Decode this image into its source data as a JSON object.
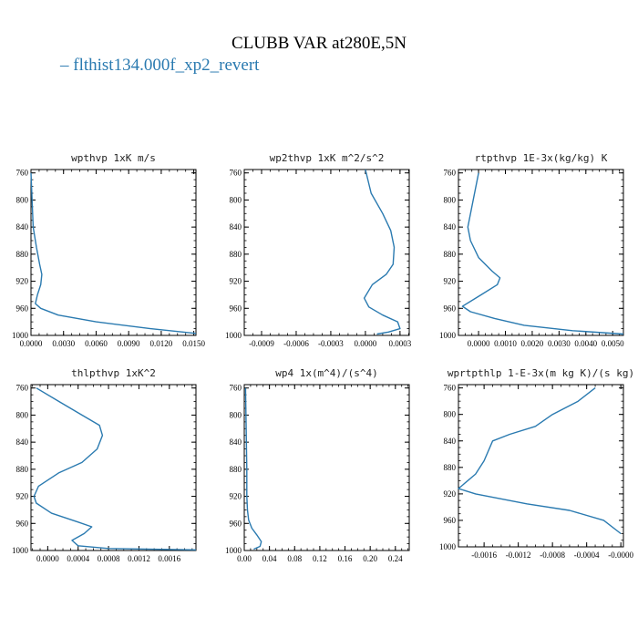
{
  "title": "CLUBB VAR at280E,5N",
  "legend": {
    "label": "flthist134.000f_xp2_revert",
    "color": "#2a7ab0"
  },
  "chart_data": [
    {
      "type": "line",
      "title": "wpthvp   1xK m/s",
      "xlim": [
        0,
        0.0152
      ],
      "ylim": [
        1000,
        755
      ],
      "xticks": [
        0,
        0.003,
        0.006,
        0.009,
        0.012,
        0.015
      ],
      "xticklabels": [
        "0.0000",
        "0.0030",
        "0.0060",
        "0.0090",
        "0.0120",
        "0.0150"
      ],
      "yticks": [
        760,
        800,
        840,
        880,
        920,
        960,
        1000
      ],
      "x": [
        0.0,
        0.0001,
        0.0002,
        0.0005,
        0.0008,
        0.001,
        0.0009,
        0.0006,
        0.0004,
        0.0009,
        0.0025,
        0.006,
        0.011,
        0.0152
      ],
      "y": [
        760,
        800,
        840,
        870,
        895,
        910,
        925,
        940,
        953,
        960,
        970,
        980,
        990,
        997
      ]
    },
    {
      "type": "line",
      "title": "wp2thvp   1xK m^2/s^2",
      "xlim": [
        -0.00105,
        0.00038
      ],
      "ylim": [
        1000,
        755
      ],
      "xticks": [
        -0.0009,
        -0.0006,
        -0.0003,
        0,
        0.0003
      ],
      "xticklabels": [
        "-0.0009",
        "-0.0006",
        "-0.0003",
        "0.0000",
        "0.0003"
      ],
      "yticks": [
        760,
        800,
        840,
        880,
        920,
        960,
        1000
      ],
      "x": [
        0.0,
        5e-05,
        0.00015,
        0.00022,
        0.00025,
        0.00024,
        0.00018,
        6e-05,
        -1e-05,
        3e-05,
        0.00015,
        0.00028,
        0.0003,
        0.0002,
        0.0001
      ],
      "y": [
        755,
        790,
        820,
        845,
        870,
        895,
        910,
        925,
        945,
        958,
        970,
        980,
        990,
        995,
        998
      ]
    },
    {
      "type": "line",
      "title": "rtpthvp   1E-3x(kg/kg) K",
      "xlim": [
        -0.00075,
        0.0054
      ],
      "ylim": [
        1000,
        755
      ],
      "xticks": [
        0,
        0.001,
        0.002,
        0.003,
        0.004,
        0.005
      ],
      "xticklabels": [
        "0.0000",
        "0.0010",
        "0.0020",
        "0.0030",
        "0.0040",
        "0.0050"
      ],
      "yticks": [
        760,
        800,
        840,
        880,
        920,
        960,
        1000
      ],
      "x": [
        0.0,
        -0.0002,
        -0.0004,
        -0.0003,
        0.0,
        0.0005,
        0.0008,
        0.0007,
        0.0001,
        -0.0006,
        -0.0003,
        0.0006,
        0.0017,
        0.0035,
        0.0054
      ],
      "y": [
        760,
        800,
        840,
        860,
        885,
        905,
        915,
        925,
        940,
        957,
        965,
        975,
        985,
        993,
        998
      ]
    },
    {
      "type": "line",
      "title": "thlpthvp   1xK^2",
      "xlim": [
        -0.00022,
        0.00195
      ],
      "ylim": [
        1000,
        755
      ],
      "xticks": [
        0,
        0.0004,
        0.0008,
        0.0012,
        0.0016
      ],
      "xticklabels": [
        "0.0000",
        "0.0004",
        "0.0008",
        "0.0012",
        "0.0016"
      ],
      "yticks": [
        760,
        800,
        840,
        880,
        920,
        960,
        1000
      ],
      "x": [
        -0.00015,
        0.00015,
        0.00045,
        0.00068,
        0.00072,
        0.00065,
        0.00045,
        0.00015,
        -0.00012,
        -0.00018,
        -0.00015,
        5e-05,
        0.0004,
        0.00058,
        0.00048,
        0.00032,
        0.0004,
        0.0008,
        0.00195
      ],
      "y": [
        760,
        780,
        800,
        815,
        830,
        850,
        870,
        885,
        905,
        920,
        930,
        945,
        958,
        965,
        975,
        985,
        993,
        997,
        999
      ]
    },
    {
      "type": "line",
      "title": "wp4   1x(m^4)/(s^4)",
      "xlim": [
        0,
        0.262
      ],
      "ylim": [
        1000,
        755
      ],
      "xticks": [
        0,
        0.04,
        0.08,
        0.12,
        0.16,
        0.2,
        0.24
      ],
      "xticklabels": [
        "0.00",
        "0.04",
        "0.08",
        "0.12",
        "0.16",
        "0.20",
        "0.24"
      ],
      "yticks": [
        760,
        800,
        840,
        880,
        920,
        960,
        1000
      ],
      "x": [
        0.002,
        0.003,
        0.004,
        0.004,
        0.005,
        0.007,
        0.012,
        0.02,
        0.027,
        0.025,
        0.015
      ],
      "y": [
        760,
        820,
        880,
        920,
        940,
        955,
        967,
        977,
        987,
        994,
        998
      ]
    },
    {
      "type": "line",
      "title": "wprtpthlp   1-E-3x(m kg K)/(s kg)",
      "xlim": [
        -0.0019,
        3e-05
      ],
      "ylim": [
        1000,
        755
      ],
      "xticks": [
        -0.0016,
        -0.0012,
        -0.0008,
        -0.0004,
        0
      ],
      "xticklabels": [
        "-0.0016",
        "-0.0012",
        "-0.0008",
        "-0.0004",
        "-0.0000"
      ],
      "yticks": [
        760,
        800,
        840,
        880,
        920,
        960,
        1000
      ],
      "x": [
        -0.0003,
        -0.0005,
        -0.0008,
        -0.001,
        -0.0013,
        -0.0015,
        -0.0016,
        -0.0017,
        -0.0019,
        -0.0017,
        -0.0011,
        -0.0006,
        -0.0002,
        0.0
      ],
      "y": [
        760,
        780,
        800,
        818,
        830,
        840,
        870,
        890,
        912,
        920,
        935,
        945,
        960,
        980
      ]
    }
  ]
}
